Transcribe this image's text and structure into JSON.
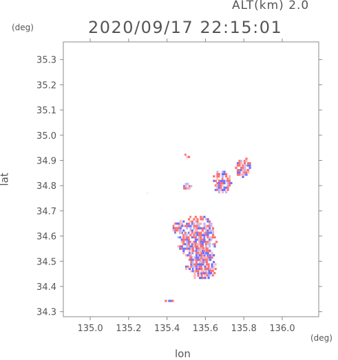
{
  "header": {
    "altitude_label": "ALT(km) 2.0",
    "timestamp": "2020/09/17 22:15:01"
  },
  "chart_data": {
    "type": "heatmap",
    "title": "2020/09/17 22:15:01",
    "subtitle": "ALT(km) 2.0",
    "xlabel": "lon",
    "ylabel": "lat",
    "x_unit": "(deg)",
    "y_unit": "(deg)",
    "xlim": [
      134.86,
      136.19
    ],
    "ylim": [
      34.28,
      35.37
    ],
    "x_ticks": [
      135.0,
      135.2,
      135.4,
      135.6,
      135.8,
      136.0
    ],
    "x_tick_labels": [
      "135.0",
      "135.2",
      "135.4",
      "135.6",
      "135.8",
      "136.0"
    ],
    "y_ticks": [
      34.3,
      34.4,
      34.5,
      34.6,
      34.7,
      34.8,
      34.9,
      35.0,
      35.1,
      35.2,
      35.3
    ],
    "y_tick_labels": [
      "34.3",
      "34.4",
      "34.5",
      "34.6",
      "34.7",
      "34.8",
      "34.9",
      "35.0",
      "35.1",
      "35.2",
      "35.3"
    ],
    "grid": false,
    "colormap": {
      "negative": "#6f72ff",
      "neutral": "#f4f4f6",
      "positive": "#ff6f6f"
    },
    "regions": [
      {
        "lon": 135.55,
        "lat": 34.59,
        "rlon": 0.105,
        "rlat": 0.09
      },
      {
        "lon": 135.57,
        "lat": 34.49,
        "rlon": 0.085,
        "rlat": 0.07
      },
      {
        "lon": 135.61,
        "lat": 34.45,
        "rlon": 0.04,
        "rlat": 0.02
      },
      {
        "lon": 135.68,
        "lat": 34.81,
        "rlon": 0.05,
        "rlat": 0.05
      },
      {
        "lon": 135.79,
        "lat": 34.87,
        "rlon": 0.045,
        "rlat": 0.04
      },
      {
        "lon": 135.5,
        "lat": 34.79,
        "rlon": 0.025,
        "rlat": 0.015
      },
      {
        "lon": 135.5,
        "lat": 34.91,
        "rlon": 0.018,
        "rlat": 0.01
      },
      {
        "lon": 135.29,
        "lat": 34.765,
        "rlon": 0.015,
        "rlat": 0.008
      },
      {
        "lon": 135.4,
        "lat": 34.335,
        "rlon": 0.03,
        "rlat": 0.006
      },
      {
        "lon": 135.45,
        "lat": 34.63,
        "rlon": 0.03,
        "rlat": 0.03
      }
    ]
  }
}
